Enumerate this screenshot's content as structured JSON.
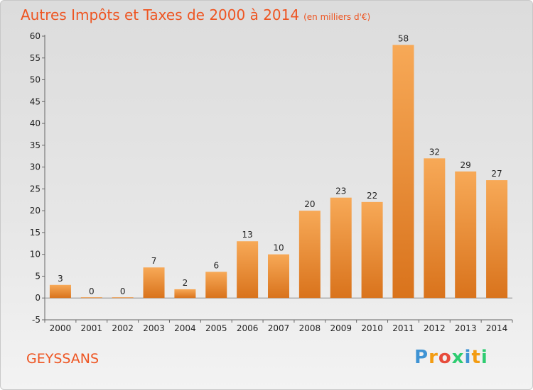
{
  "header": {
    "title": "Autres Impôts et Taxes de 2000 à 2014",
    "subtitle": "(en milliers d'€)"
  },
  "footer": {
    "commune": "GEYSSANS",
    "logo": {
      "parts": [
        "P",
        "r",
        "o",
        "x",
        "i",
        "t",
        "i"
      ],
      "colors": [
        "#3f93d4",
        "#f39c12",
        "#e74c3c",
        "#2ecc71",
        "#3f93d4",
        "#f39c12",
        "#2ecc71"
      ]
    }
  },
  "chart_data": {
    "type": "bar",
    "title": "Autres Impôts et Taxes de 2000 à 2014",
    "subtitle": "(en milliers d'€)",
    "categories": [
      "2000",
      "2001",
      "2002",
      "2003",
      "2004",
      "2005",
      "2006",
      "2007",
      "2008",
      "2009",
      "2010",
      "2011",
      "2012",
      "2013",
      "2014"
    ],
    "values": [
      3,
      0,
      0,
      7,
      2,
      6,
      13,
      10,
      20,
      23,
      22,
      58,
      32,
      29,
      27
    ],
    "value_labels": [
      "3",
      "0",
      "0",
      "7",
      "2",
      "6",
      "13",
      "10",
      "20",
      "23",
      "22",
      "58",
      "32",
      "29",
      "27"
    ],
    "yticks": [
      "-5",
      "0",
      "5",
      "10",
      "15",
      "20",
      "25",
      "30",
      "35",
      "40",
      "45",
      "50",
      "55",
      "60"
    ],
    "ylim": [
      -5,
      60
    ],
    "grid": false,
    "legend": "none",
    "bar_color_light": "#f7a957",
    "bar_color_dark": "#d9731c"
  }
}
